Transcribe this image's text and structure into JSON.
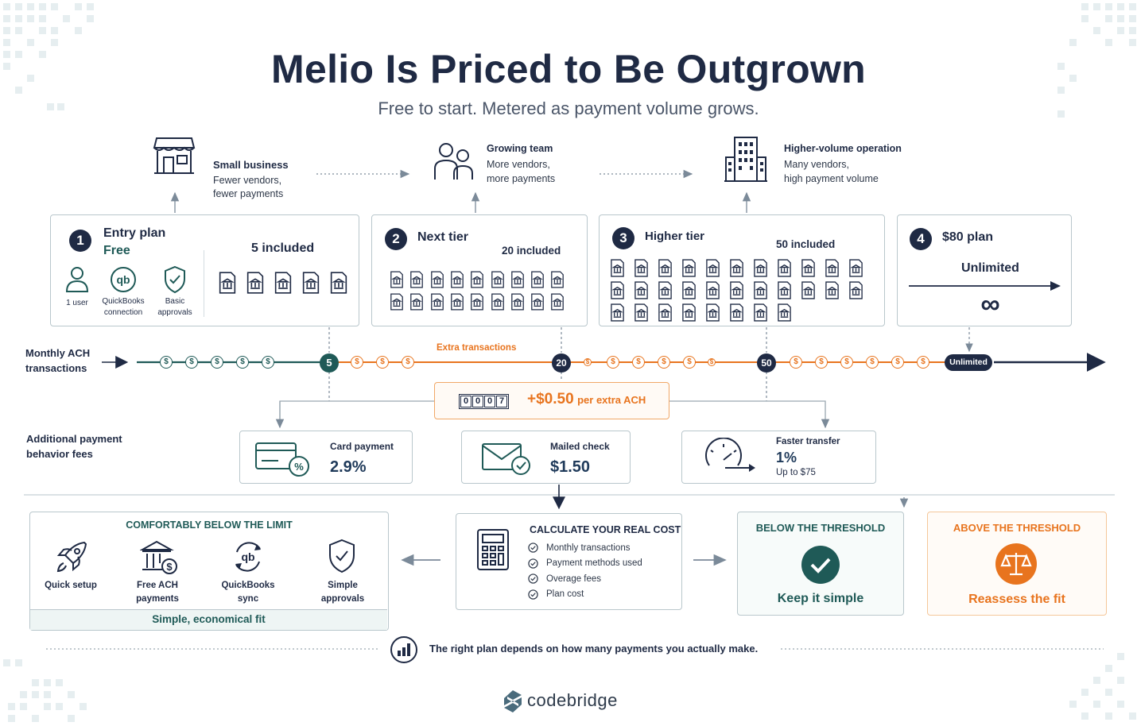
{
  "header": {
    "title": "Melio Is Priced to Be Outgrown",
    "subtitle": "Free to start. Metered as payment volume grows."
  },
  "personas": [
    {
      "title": "Small business",
      "desc1": "Fewer vendors,",
      "desc2": "fewer payments",
      "icon": "storefront-icon"
    },
    {
      "title": "Growing team",
      "desc1": "More vendors,",
      "desc2": "more payments",
      "icon": "people-icon"
    },
    {
      "title": "Higher-volume operation",
      "desc1": "Many vendors,",
      "desc2": "high payment volume",
      "icon": "office-building-icon"
    }
  ],
  "tiers": [
    {
      "num": "1",
      "name": "Entry plan",
      "price": "Free",
      "included": "5 included",
      "features": [
        {
          "label1": "1 user",
          "label2": "",
          "icon": "user-icon"
        },
        {
          "label1": "QuickBooks",
          "label2": "connection",
          "icon": "quickbooks-icon"
        },
        {
          "label1": "Basic",
          "label2": "approvals",
          "icon": "shield-check-icon"
        }
      ]
    },
    {
      "num": "2",
      "name": "Next tier",
      "included": "20 included"
    },
    {
      "num": "3",
      "name": "Higher tier",
      "included": "50 included"
    },
    {
      "num": "4",
      "name": "$80 plan",
      "included": "Unlimited",
      "symbol": "∞"
    }
  ],
  "timeline": {
    "label1": "Monthly ACH",
    "label2": "transactions",
    "milestone_5": "5",
    "milestone_20": "20",
    "milestone_50": "50",
    "unlimited": "Unlimited",
    "extra_label": "Extra transactions",
    "coin_symbol": "$"
  },
  "overage": {
    "counter_digits": [
      "0",
      "0",
      "0",
      "7"
    ],
    "price": "+$0.50",
    "unit": "per extra ACH"
  },
  "fees": {
    "label1": "Additional payment",
    "label2": "behavior fees",
    "items": [
      {
        "title": "Card payment",
        "value": "2.9%",
        "note": "",
        "icon": "credit-card-percent-icon"
      },
      {
        "title": "Mailed check",
        "value": "$1.50",
        "note": "",
        "icon": "envelope-check-icon"
      },
      {
        "title": "Faster transfer",
        "value": "1%",
        "note": "Up to $75",
        "icon": "speedometer-icon"
      }
    ]
  },
  "below_limit": {
    "title": "COMFORTABLY BELOW THE LIMIT",
    "features": [
      {
        "label1": "Quick setup",
        "label2": "",
        "icon": "rocket-icon"
      },
      {
        "label1": "Free ACH",
        "label2": "payments",
        "icon": "bank-dollar-icon"
      },
      {
        "label1": "QuickBooks",
        "label2": "sync",
        "icon": "quickbooks-sync-icon"
      },
      {
        "label1": "Simple",
        "label2": "approvals",
        "icon": "shield-check-icon"
      }
    ],
    "footer": "Simple, economical fit"
  },
  "calculator": {
    "title": "CALCULATE YOUR REAL COST",
    "items": [
      "Monthly transactions",
      "Payment methods used",
      "Overage fees",
      "Plan cost"
    ]
  },
  "below_threshold": {
    "title": "BELOW THE THRESHOLD",
    "caption": "Keep it simple"
  },
  "above_threshold": {
    "title": "ABOVE THE THRESHOLD",
    "caption": "Reassess the fit"
  },
  "footer": {
    "note": "The right plan depends on how many payments you actually make.",
    "brand": "codebridge"
  },
  "colors": {
    "navy": "#1f2a44",
    "teal": "#1f5a57",
    "orange": "#e8741e",
    "border": "#b9c7cc"
  }
}
